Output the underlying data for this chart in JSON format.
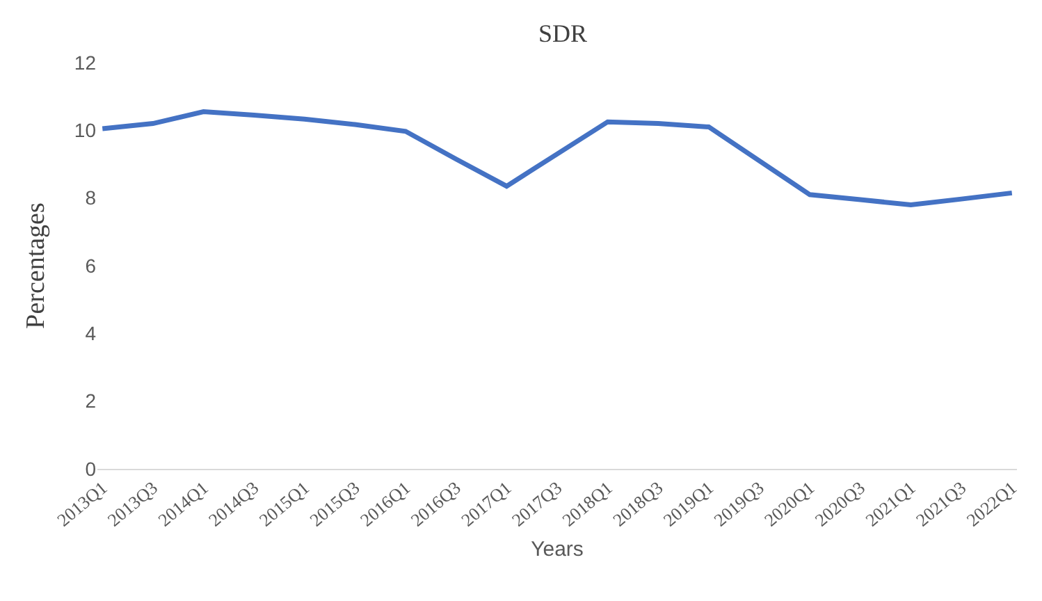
{
  "chart_data": {
    "type": "line",
    "title": "SDR",
    "xlabel": "Years",
    "ylabel": "Percentages",
    "categories": [
      "2013Q1",
      "2013Q3",
      "2014Q1",
      "2014Q3",
      "2015Q1",
      "2015Q3",
      "2016Q1",
      "2016Q3",
      "2017Q1",
      "2017Q3",
      "2018Q1",
      "2018Q3",
      "2019Q1",
      "2019Q3",
      "2020Q1",
      "2020Q3",
      "2021Q1",
      "2021Q3",
      "2022Q1"
    ],
    "series": [
      {
        "color": "#4472c4",
        "values": [
          10.05,
          10.2,
          10.55,
          10.45,
          10.33,
          10.17,
          9.97,
          9.15,
          8.35,
          9.3,
          10.25,
          10.2,
          10.1,
          9.1,
          8.1,
          7.95,
          7.8,
          7.97,
          8.15
        ]
      }
    ],
    "ylim": [
      0,
      12
    ],
    "yticks": [
      0,
      2,
      4,
      6,
      8,
      10,
      12
    ],
    "grid": false,
    "line_style": "solid"
  }
}
